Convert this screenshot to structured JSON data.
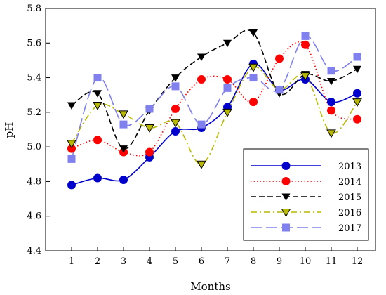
{
  "chart_data": {
    "type": "line",
    "title": "",
    "xlabel": "Months",
    "ylabel": "pH",
    "x": [
      1,
      2,
      3,
      4,
      5,
      6,
      7,
      8,
      9,
      10,
      11,
      12
    ],
    "x_tick_labels": [
      "1",
      "2",
      "3",
      "4",
      "5",
      "6",
      "7",
      "8",
      "9",
      "10",
      "11",
      "12"
    ],
    "ylim": [
      4.4,
      5.8
    ],
    "y_ticks": [
      4.4,
      4.6,
      4.8,
      5.0,
      5.2,
      5.4,
      5.6,
      5.8
    ],
    "y_tick_labels": [
      "4.4",
      "4.6",
      "4.8",
      "5.0",
      "5.2",
      "5.4",
      "5.6",
      "5.8"
    ],
    "grid": false,
    "legend_position": "bottom-right",
    "series": [
      {
        "name": "2013",
        "color": "#0000cc",
        "line_style": "solid",
        "marker": "circle",
        "values": [
          4.78,
          4.82,
          4.81,
          4.94,
          5.09,
          5.11,
          5.23,
          5.48,
          5.33,
          5.39,
          5.26,
          5.31
        ]
      },
      {
        "name": "2014",
        "color": "#ff0000",
        "line_style": "dotted",
        "marker": "circle",
        "values": [
          4.99,
          5.04,
          4.97,
          4.97,
          5.22,
          5.39,
          5.39,
          5.26,
          5.51,
          5.59,
          5.21,
          5.16
        ]
      },
      {
        "name": "2015",
        "color": "#000000",
        "line_style": "dashed",
        "marker": "triangle-down",
        "values": [
          5.24,
          5.31,
          4.99,
          5.21,
          5.4,
          5.52,
          5.6,
          5.66,
          5.31,
          5.42,
          5.38,
          5.45
        ]
      },
      {
        "name": "2016",
        "color": "#b8b800",
        "line_style": "dash-dot",
        "marker": "triangle-down",
        "values": [
          5.02,
          5.24,
          5.19,
          5.11,
          5.14,
          4.9,
          5.2,
          5.46,
          5.33,
          5.41,
          5.08,
          5.26
        ]
      },
      {
        "name": "2017",
        "color": "#8080ee",
        "line_style": "long-dash",
        "marker": "square",
        "values": [
          4.93,
          5.4,
          5.13,
          5.22,
          5.35,
          5.13,
          5.34,
          5.4,
          5.33,
          5.64,
          5.44,
          5.52
        ]
      }
    ]
  }
}
